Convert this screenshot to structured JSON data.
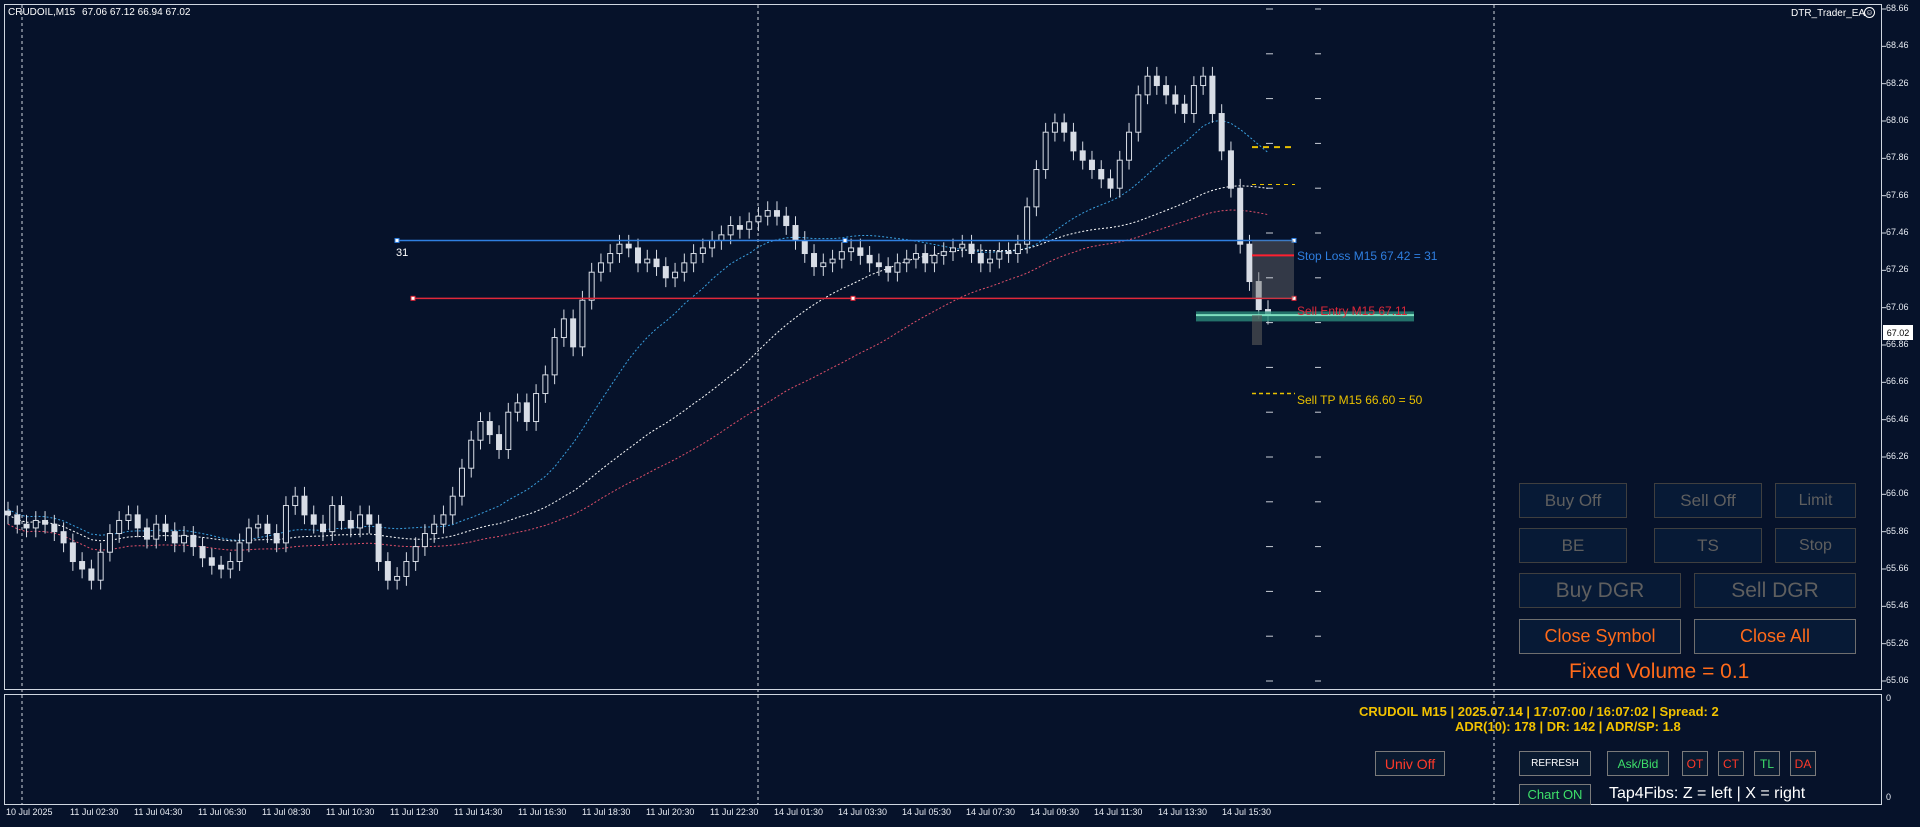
{
  "header": {
    "symbol_timeframe": "CRUDOIL,M15",
    "ohlc": "67.06 67.12 66.94 67.02",
    "ea_name": "DTR_Trader_EA",
    "ea_icon": "smiley-icon"
  },
  "price_axis": {
    "labels": [
      "68.66",
      "68.46",
      "68.26",
      "68.06",
      "67.86",
      "67.66",
      "67.46",
      "67.26",
      "67.06",
      "66.86",
      "66.66",
      "66.46",
      "66.26",
      "66.06",
      "65.86",
      "65.66",
      "65.46",
      "65.26",
      "65.06"
    ],
    "current_price": "67.02",
    "subwindow_top": "0",
    "subwindow_bottom": "0"
  },
  "time_axis": {
    "labels": [
      "10 Jul 2025",
      "11 Jul 02:30",
      "11 Jul 04:30",
      "11 Jul 06:30",
      "11 Jul 08:30",
      "11 Jul 10:30",
      "11 Jul 12:30",
      "11 Jul 14:30",
      "11 Jul 16:30",
      "11 Jul 18:30",
      "11 Jul 20:30",
      "11 Jul 22:30",
      "14 Jul 01:30",
      "14 Jul 03:30",
      "14 Jul 05:30",
      "14 Jul 07:30",
      "14 Jul 09:30",
      "14 Jul 11:30",
      "14 Jul 13:30",
      "14 Jul 15:30"
    ]
  },
  "trade_lines": {
    "stop_loss_label": "Stop Loss M15 67.42 = 31",
    "stop_loss_price": 67.42,
    "stop_loss_color": "#2f7fe0",
    "stop_loss_marker": "31",
    "entry_label": "Sell Entry M15 67.11",
    "entry_price": 67.11,
    "entry_color": "#e0283a",
    "tp_label": "Sell TP M15 66.60 = 50",
    "tp_price": 66.6,
    "tp_color": "#e8c000"
  },
  "panel": {
    "buy_off": "Buy Off",
    "sell_off": "Sell Off",
    "limit": "Limit",
    "be": "BE",
    "ts": "TS",
    "stop": "Stop",
    "buy_dgr": "Buy DGR",
    "sell_dgr": "Sell DGR",
    "close_symbol": "Close Symbol",
    "close_all": "Close All",
    "fixed_volume": "Fixed Volume = 0.1",
    "accent_color": "#ff6a1a"
  },
  "info": {
    "line1": "CRUDOIL M15 | 2025.07.14 | 17:07:00 / 16:07:02 | Spread: 2",
    "line2": "ADR(10): 178 | DR: 142 | ADR/SP: 1.8"
  },
  "subwindow_buttons": {
    "univ_off": "Univ Off",
    "refresh": "REFRESH",
    "ask_bid": "Ask/Bid",
    "ot": "OT",
    "ct": "CT",
    "tl": "TL",
    "da": "DA",
    "chart_on": "Chart ON",
    "tap4fibs": "Tap4Fibs: Z = left | X = right"
  },
  "chart_data": {
    "type": "candlestick",
    "symbol": "CRUDOIL",
    "timeframe": "M15",
    "ylim": [
      65.0,
      68.7
    ],
    "grid": false,
    "closes": [
      65.95,
      65.9,
      65.88,
      65.92,
      65.9,
      65.86,
      65.8,
      65.7,
      65.66,
      65.6,
      65.75,
      65.85,
      65.92,
      65.95,
      65.88,
      65.82,
      65.9,
      65.86,
      65.8,
      65.84,
      65.78,
      65.72,
      65.68,
      65.66,
      65.7,
      65.8,
      65.88,
      65.9,
      65.85,
      65.8,
      66.0,
      66.05,
      65.95,
      65.9,
      65.86,
      66.0,
      65.92,
      65.88,
      65.95,
      65.9,
      65.7,
      65.6,
      65.62,
      65.7,
      65.78,
      65.85,
      65.9,
      65.95,
      66.05,
      66.2,
      66.35,
      66.45,
      66.38,
      66.3,
      66.5,
      66.55,
      66.45,
      66.6,
      66.7,
      66.9,
      67.0,
      66.85,
      67.1,
      67.25,
      67.3,
      67.35,
      67.4,
      67.38,
      67.3,
      67.32,
      67.28,
      67.22,
      67.25,
      67.3,
      67.35,
      67.38,
      67.42,
      67.45,
      67.5,
      67.48,
      67.52,
      67.55,
      67.58,
      67.55,
      67.5,
      67.42,
      67.35,
      67.28,
      67.3,
      67.32,
      67.36,
      67.38,
      67.34,
      67.3,
      67.28,
      67.25,
      67.3,
      67.32,
      67.35,
      67.3,
      67.34,
      67.36,
      67.38,
      67.4,
      67.35,
      67.3,
      67.32,
      67.36,
      67.35,
      67.4,
      67.6,
      67.8,
      68.0,
      68.05,
      68.0,
      67.9,
      67.85,
      67.8,
      67.75,
      67.7,
      67.85,
      68.0,
      68.2,
      68.3,
      68.25,
      68.2,
      68.15,
      68.1,
      68.25,
      68.3,
      68.1,
      67.9,
      67.7,
      67.4,
      67.2,
      67.05,
      67.02
    ]
  }
}
